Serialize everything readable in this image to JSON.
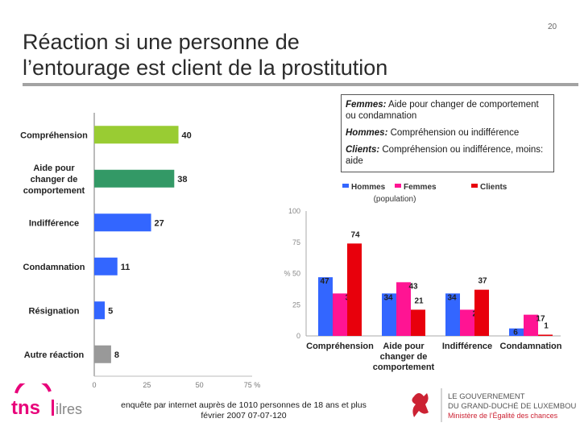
{
  "page_number": "20",
  "title_line1": "Réaction si une personne de",
  "title_line2": "l’entourage est client de la prostitution",
  "notes": [
    {
      "label": "Femmes:",
      "text": " Aide pour changer de comportement ou condamnation"
    },
    {
      "label": "Hommes:",
      "text": " Compréhension ou indifférence"
    },
    {
      "label": "Clients:",
      "text": " Compréhension ou indifférence, moins: aide"
    }
  ],
  "footer_line1": "enquête par internet auprès de 1010 personnes de 18 ans et plus",
  "footer_line2": "février 2007     07-07-120",
  "logo_tns": "tns",
  "logo_tns_suffix": "ilres",
  "logo_lux_line1": "LE GOUVERNEMENT",
  "logo_lux_line2": "DU GRAND-DUCHÉ DE LUXEMBOURG",
  "logo_lux_line3": "Ministère de l’Égalité des chances",
  "colors": {
    "hommes": "#3366ff",
    "femmes": "#ff1493",
    "clients": "#e8000c",
    "green1": "#99cc33",
    "green2": "#339966",
    "gray": "#999999"
  },
  "chart_data": [
    {
      "type": "bar",
      "orientation": "horizontal",
      "categories": [
        "Compréhension",
        "Aide pour changer de comportement",
        "Indifférence",
        "Condamnation",
        "Résignation",
        "Autre réaction"
      ],
      "values": [
        40,
        38,
        27,
        11,
        5,
        8
      ],
      "bar_colors": [
        "#99cc33",
        "#339966",
        "#3366ff",
        "#3366ff",
        "#3366ff",
        "#999999"
      ],
      "xlim": [
        0,
        75
      ],
      "xticks": [
        "0",
        "25",
        "50",
        "75 %"
      ]
    },
    {
      "type": "bar",
      "categories": [
        "Compréhension",
        "Aide pour changer de comportement",
        "Indifférence",
        "Condamnation"
      ],
      "series": [
        {
          "name": "Hommes",
          "values": [
            47,
            34,
            34,
            6
          ]
        },
        {
          "name": "Femmes",
          "values": [
            34,
            43,
            21,
            17
          ]
        },
        {
          "name": "Clients",
          "values": [
            74,
            21,
            37,
            1
          ]
        }
      ],
      "legend_note": "(population)",
      "ylim": [
        0,
        100
      ],
      "yticks": [
        "0",
        "25",
        "% 50",
        "75",
        "100"
      ],
      "legend": "top"
    }
  ]
}
